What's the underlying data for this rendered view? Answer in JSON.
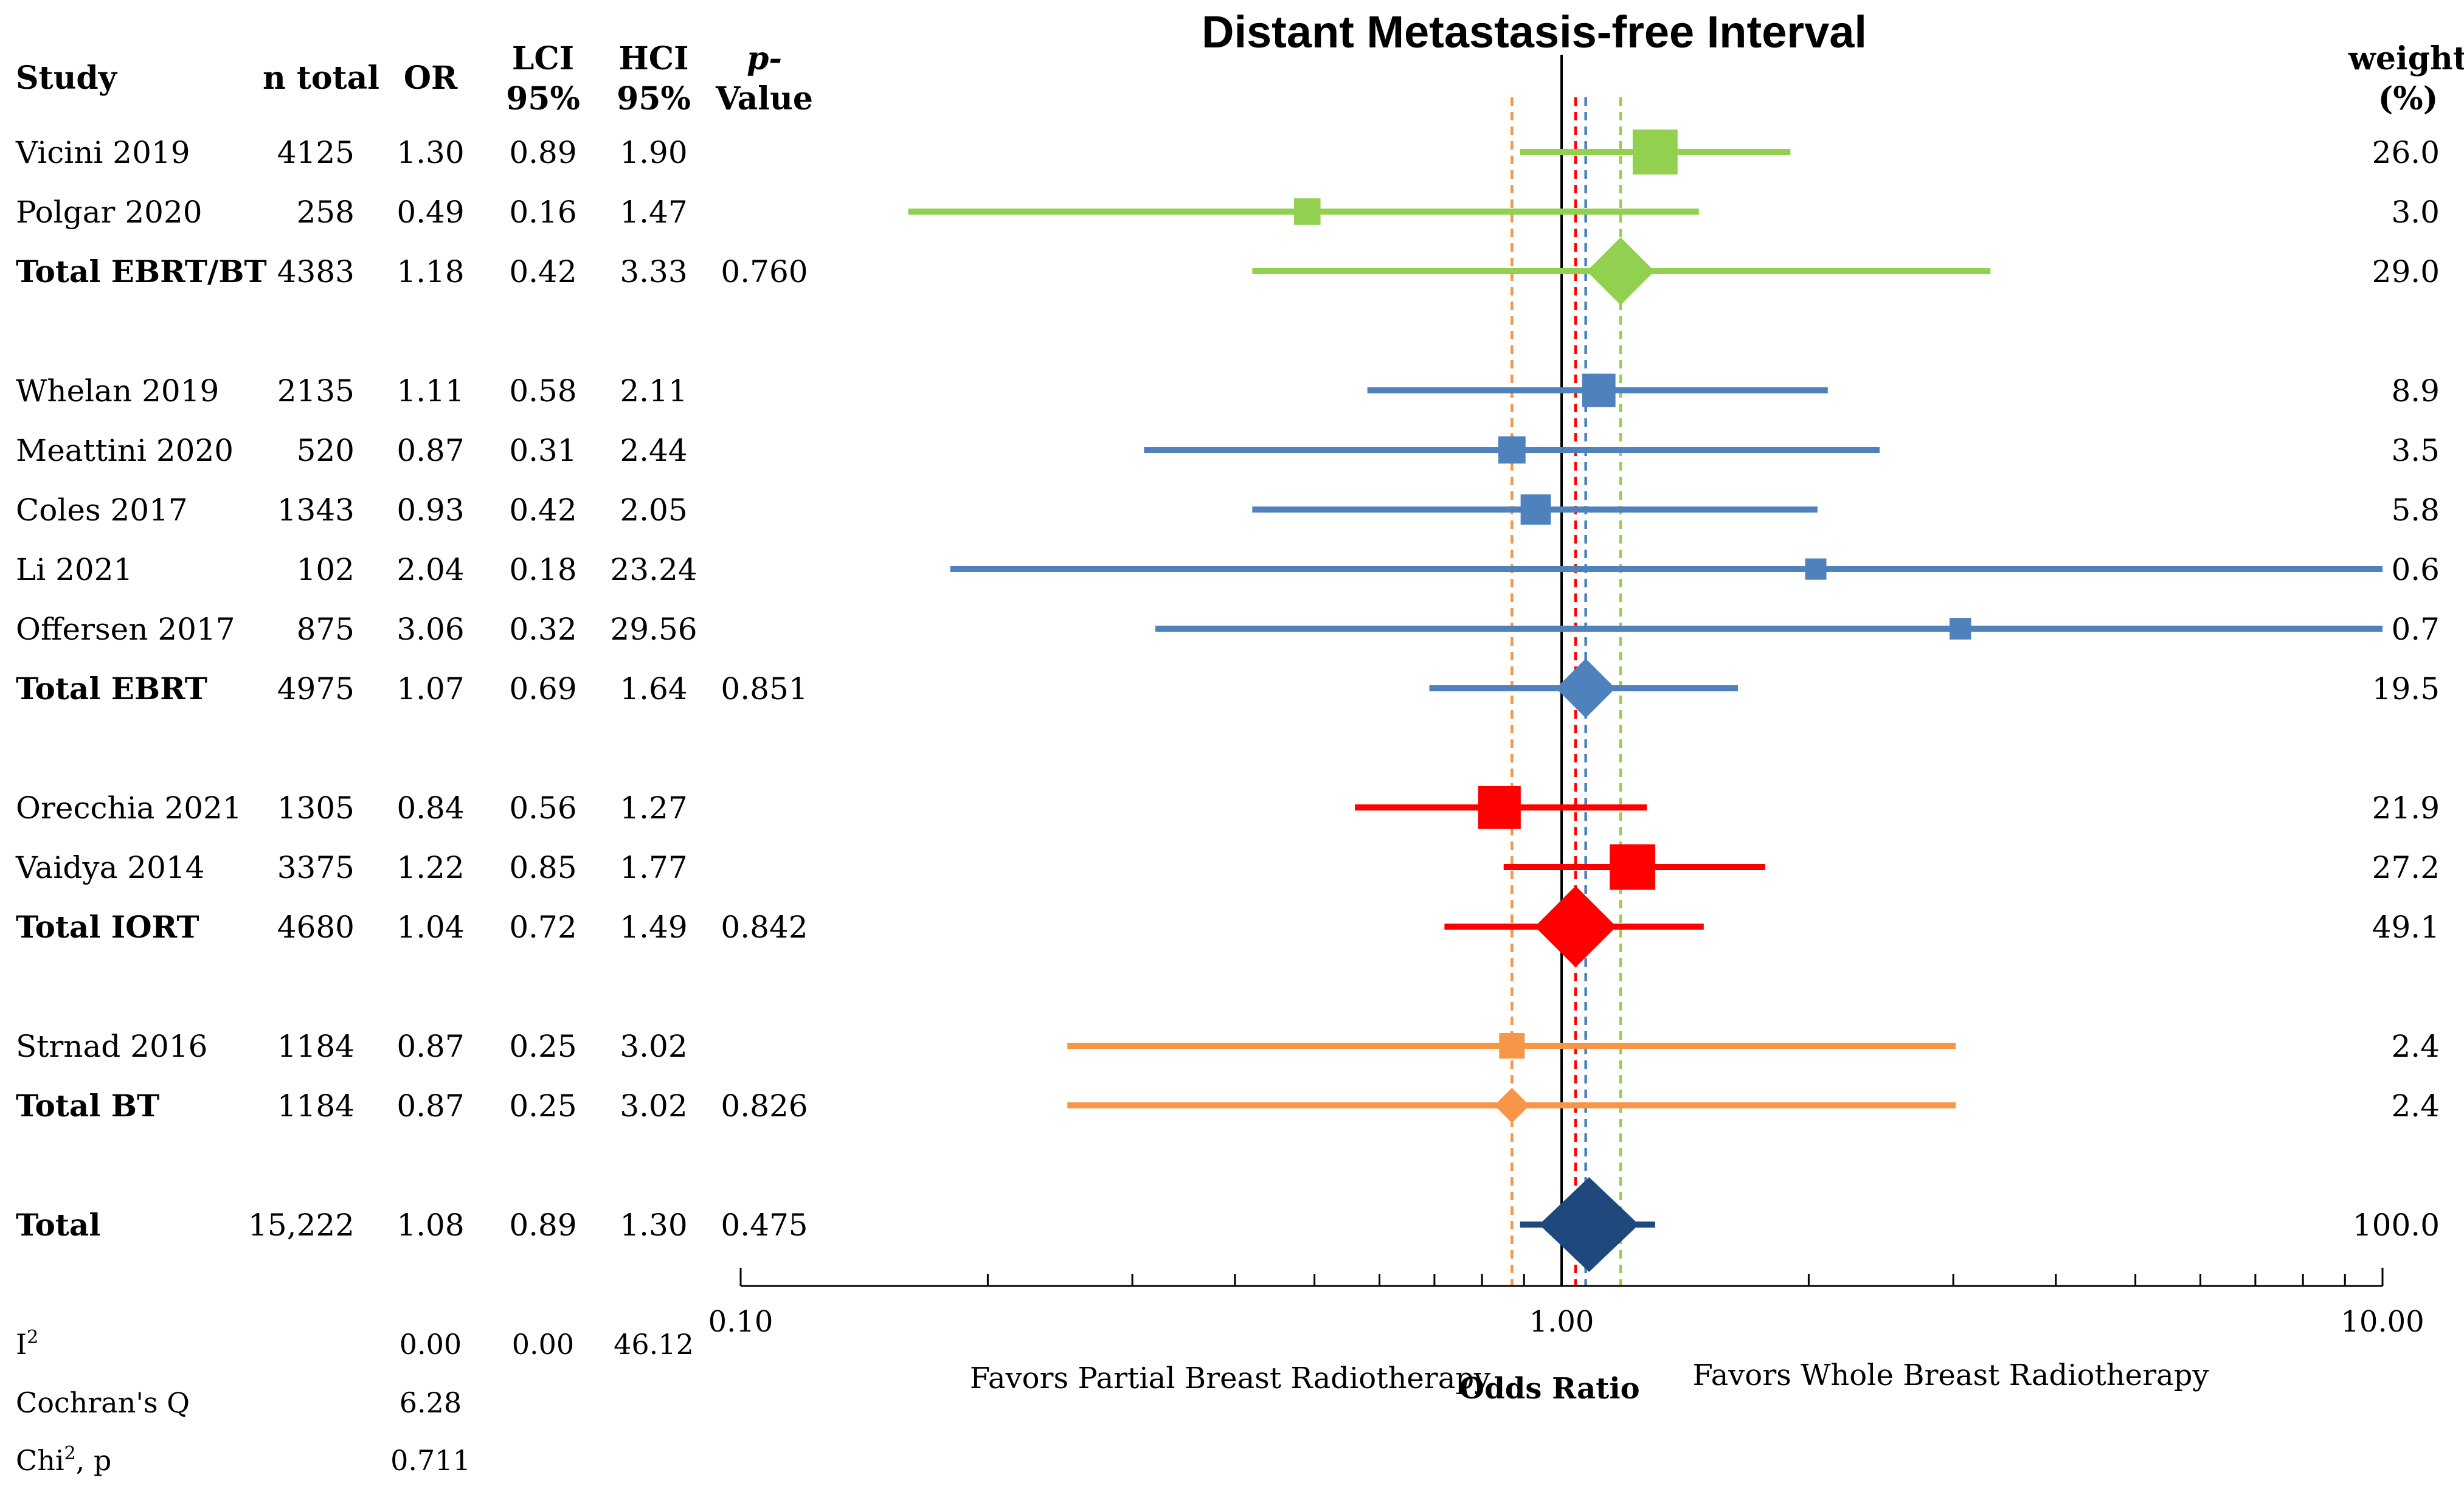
{
  "chart_data": {
    "type": "forest",
    "title": "Distant Metastasis-free Interval",
    "columns": {
      "study": "Study",
      "n": "n total",
      "or": "OR",
      "lci": [
        "LCI",
        "95%"
      ],
      "hci": [
        "HCI",
        "95%"
      ],
      "p": [
        "p-",
        "Value"
      ],
      "weight": [
        "weight",
        "(%)"
      ]
    },
    "rows": [
      {
        "label": "Vicini 2019",
        "kind": "study",
        "group": "ebrt_bt",
        "n": "4125",
        "or": "1.30",
        "lci": "0.89",
        "hci": "1.90",
        "p": "",
        "weight": "26.0",
        "or_v": 1.3,
        "lci_v": 0.89,
        "hci_v": 1.9,
        "w_v": 26.0
      },
      {
        "label": "Polgar 2020",
        "kind": "study",
        "group": "ebrt_bt",
        "n": "258",
        "or": "0.49",
        "lci": "0.16",
        "hci": "1.47",
        "p": "",
        "weight": "3.0",
        "or_v": 0.49,
        "lci_v": 0.16,
        "hci_v": 1.47,
        "w_v": 3.0
      },
      {
        "label": "Total EBRT/BT",
        "kind": "subtotal",
        "group": "ebrt_bt",
        "n": "4383",
        "or": "1.18",
        "lci": "0.42",
        "hci": "3.33",
        "p": "0.760",
        "weight": "29.0",
        "or_v": 1.18,
        "lci_v": 0.42,
        "hci_v": 3.33,
        "w_v": 29.0
      },
      {
        "label": "Whelan 2019",
        "kind": "study",
        "group": "ebrt",
        "n": "2135",
        "or": "1.11",
        "lci": "0.58",
        "hci": "2.11",
        "p": "",
        "weight": "8.9",
        "or_v": 1.11,
        "lci_v": 0.58,
        "hci_v": 2.11,
        "w_v": 8.9
      },
      {
        "label": "Meattini 2020",
        "kind": "study",
        "group": "ebrt",
        "n": "520",
        "or": "0.87",
        "lci": "0.31",
        "hci": "2.44",
        "p": "",
        "weight": "3.5",
        "or_v": 0.87,
        "lci_v": 0.31,
        "hci_v": 2.44,
        "w_v": 3.5
      },
      {
        "label": "Coles 2017",
        "kind": "study",
        "group": "ebrt",
        "n": "1343",
        "or": "0.93",
        "lci": "0.42",
        "hci": "2.05",
        "p": "",
        "weight": "5.8",
        "or_v": 0.93,
        "lci_v": 0.42,
        "hci_v": 2.05,
        "w_v": 5.8
      },
      {
        "label": "Li 2021",
        "kind": "study",
        "group": "ebrt",
        "n": "102",
        "or": "2.04",
        "lci": "0.18",
        "hci": "23.24",
        "p": "",
        "weight": "0.6",
        "or_v": 2.04,
        "lci_v": 0.18,
        "hci_v": 23.24,
        "w_v": 0.6
      },
      {
        "label": "Offersen 2017",
        "kind": "study",
        "group": "ebrt",
        "n": "875",
        "or": "3.06",
        "lci": "0.32",
        "hci": "29.56",
        "p": "",
        "weight": "0.7",
        "or_v": 3.06,
        "lci_v": 0.32,
        "hci_v": 29.56,
        "w_v": 0.7
      },
      {
        "label": "Total EBRT",
        "kind": "subtotal",
        "group": "ebrt",
        "n": "4975",
        "or": "1.07",
        "lci": "0.69",
        "hci": "1.64",
        "p": "0.851",
        "weight": "19.5",
        "or_v": 1.07,
        "lci_v": 0.69,
        "hci_v": 1.64,
        "w_v": 19.5
      },
      {
        "label": "Orecchia 2021",
        "kind": "study",
        "group": "iort",
        "n": "1305",
        "or": "0.84",
        "lci": "0.56",
        "hci": "1.27",
        "p": "",
        "weight": "21.9",
        "or_v": 0.84,
        "lci_v": 0.56,
        "hci_v": 1.27,
        "w_v": 21.9
      },
      {
        "label": "Vaidya 2014",
        "kind": "study",
        "group": "iort",
        "n": "3375",
        "or": "1.22",
        "lci": "0.85",
        "hci": "1.77",
        "p": "",
        "weight": "27.2",
        "or_v": 1.22,
        "lci_v": 0.85,
        "hci_v": 1.77,
        "w_v": 27.2
      },
      {
        "label": "Total IORT",
        "kind": "subtotal",
        "group": "iort",
        "n": "4680",
        "or": "1.04",
        "lci": "0.72",
        "hci": "1.49",
        "p": "0.842",
        "weight": "49.1",
        "or_v": 1.04,
        "lci_v": 0.72,
        "hci_v": 1.49,
        "w_v": 49.1
      },
      {
        "label": "Strnad 2016",
        "kind": "study",
        "group": "bt",
        "n": "1184",
        "or": "0.87",
        "lci": "0.25",
        "hci": "3.02",
        "p": "",
        "weight": "2.4",
        "or_v": 0.87,
        "lci_v": 0.25,
        "hci_v": 3.02,
        "w_v": 2.4
      },
      {
        "label": "Total BT",
        "kind": "subtotal",
        "group": "bt",
        "n": "1184",
        "or": "0.87",
        "lci": "0.25",
        "hci": "3.02",
        "p": "0.826",
        "weight": "2.4",
        "or_v": 0.87,
        "lci_v": 0.25,
        "hci_v": 3.02,
        "w_v": 2.4
      },
      {
        "label": "Total",
        "kind": "total",
        "group": "total",
        "n": "15,222",
        "or": "1.08",
        "lci": "0.89",
        "hci": "1.30",
        "p": "0.475",
        "weight": "100.0",
        "or_v": 1.08,
        "lci_v": 0.89,
        "hci_v": 1.3,
        "w_v": 100.0
      }
    ],
    "heterogeneity": [
      {
        "label": "I",
        "sup": "2",
        "c1": "0.00",
        "c2": "0.00",
        "c3": "46.12"
      },
      {
        "label": "Cochran's Q",
        "sup": "",
        "c1": "6.28",
        "c2": "",
        "c3": ""
      },
      {
        "label": "Chi",
        "sup": "2",
        "label_suffix": ", p",
        "c1": "0.711",
        "c2": "",
        "c3": ""
      }
    ],
    "x_axis": {
      "scale": "log",
      "label": "Odds Ratio",
      "range": [
        0.1,
        10
      ],
      "ticks": [
        "0.10",
        "1.00",
        "10.00"
      ],
      "reference": 1.0
    },
    "favors_left": "Favors Partial Breast Radiotherapy",
    "favors_right": "Favors Whole Breast Radiotherapy",
    "colors": {
      "ebrt_bt": "#92d050",
      "ebrt": "#4f81bd",
      "iort": "#ff0000",
      "bt": "#f79646",
      "total": "#1f497d"
    },
    "pooled_lines": [
      {
        "group": "ebrt_bt",
        "value": 1.18
      },
      {
        "group": "ebrt",
        "value": 1.07
      },
      {
        "group": "iort",
        "value": 1.04
      },
      {
        "group": "bt",
        "value": 0.87
      }
    ]
  }
}
